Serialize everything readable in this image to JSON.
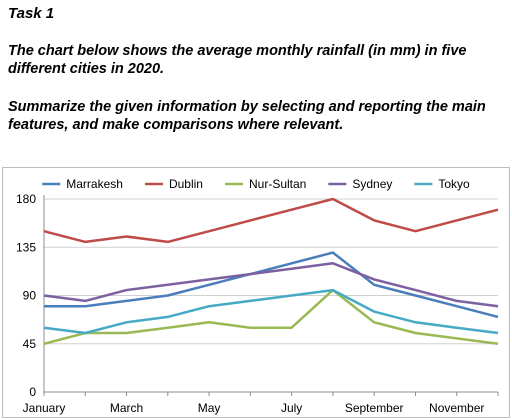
{
  "heading": "Task 1",
  "prompt_1": "The chart below shows the average monthly rainfall (in mm) in five different cities in 2020.",
  "prompt_2": "Summarize the given information by selecting and reporting the main features, and make comparisons where relevant.",
  "chart_data": {
    "type": "line",
    "title": "",
    "xlabel": "",
    "ylabel": "",
    "categories": [
      "January",
      "February",
      "March",
      "April",
      "May",
      "June",
      "July",
      "August",
      "September",
      "October",
      "November",
      "December"
    ],
    "x_tick_labels": [
      "January",
      "",
      "March",
      "",
      "May",
      "",
      "July",
      "",
      "September",
      "",
      "November",
      ""
    ],
    "ylim": [
      0,
      180
    ],
    "yticks": [
      0,
      45,
      90,
      135,
      180
    ],
    "grid": true,
    "legend_position": "top",
    "series": [
      {
        "name": "Marrakesh",
        "color": "#4a7ebb",
        "values": [
          80,
          80,
          85,
          90,
          100,
          110,
          120,
          130,
          100,
          90,
          80,
          70
        ]
      },
      {
        "name": "Dublin",
        "color": "#be4b48",
        "values": [
          150,
          140,
          145,
          140,
          150,
          160,
          170,
          180,
          160,
          150,
          160,
          170
        ]
      },
      {
        "name": "Nur-Sultan",
        "color": "#98b954",
        "values": [
          45,
          55,
          55,
          60,
          65,
          60,
          60,
          95,
          65,
          55,
          50,
          45
        ]
      },
      {
        "name": "Sydney",
        "color": "#7d60a0",
        "values": [
          90,
          85,
          95,
          100,
          105,
          110,
          115,
          120,
          105,
          95,
          85,
          80
        ]
      },
      {
        "name": "Tokyo",
        "color": "#46aac5",
        "values": [
          60,
          55,
          65,
          70,
          80,
          85,
          90,
          95,
          75,
          65,
          60,
          55
        ]
      }
    ]
  }
}
